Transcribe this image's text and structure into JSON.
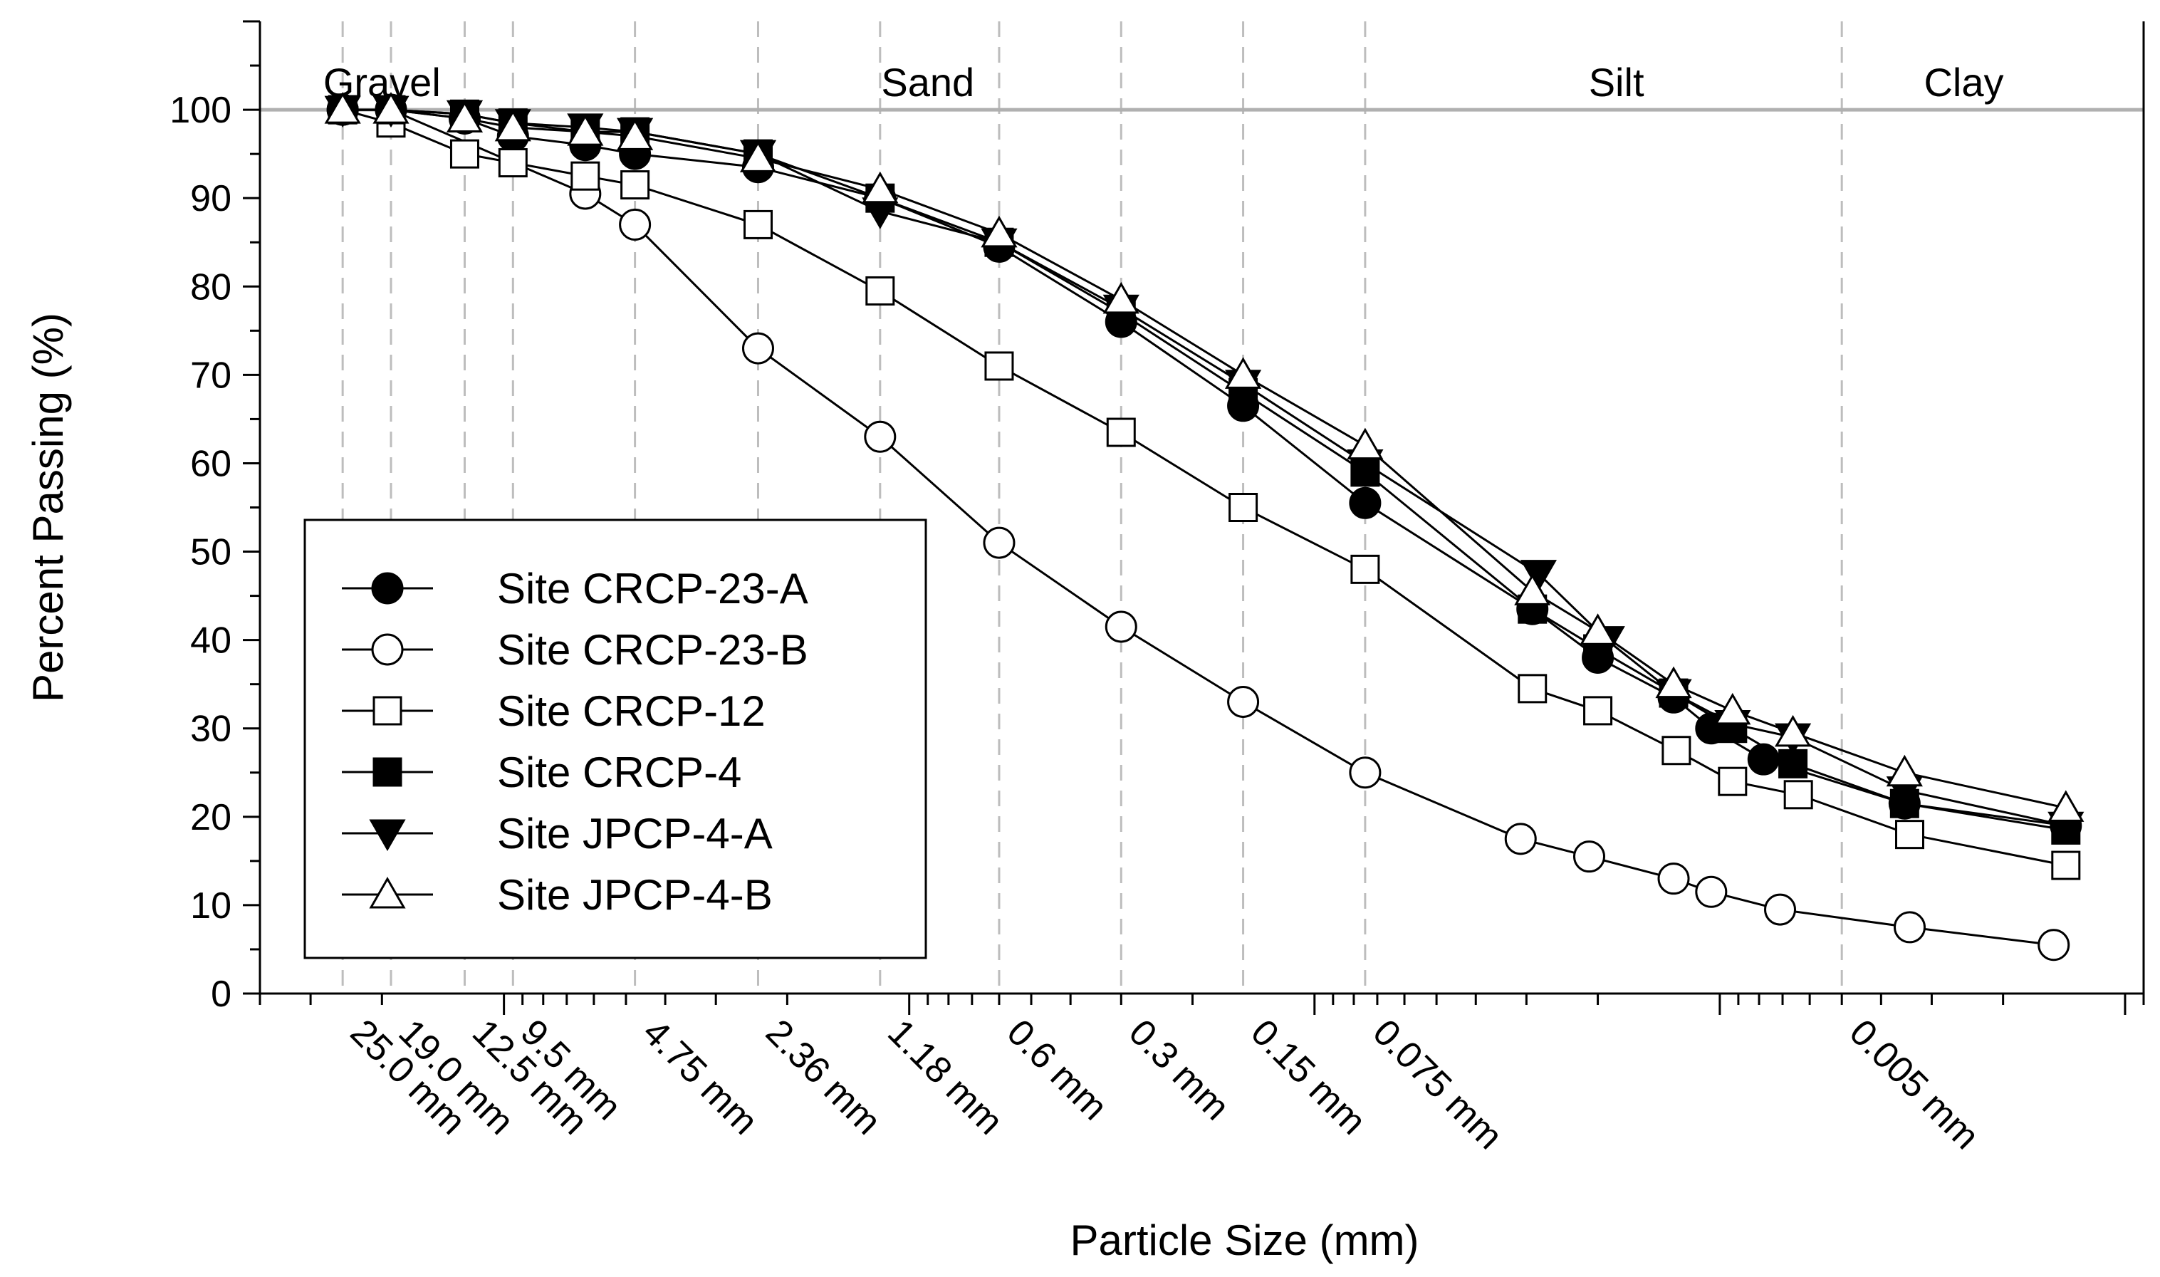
{
  "chart_data": {
    "type": "line",
    "title": "",
    "xlabel": "Particle Size (mm)",
    "ylabel": "Percent  Passing (%)",
    "x_scale": "log",
    "x_direction": "descending",
    "xlim": [
      40,
      0.0009
    ],
    "ylim": [
      0,
      110
    ],
    "yticks": [
      0,
      10,
      20,
      30,
      40,
      50,
      60,
      70,
      80,
      90,
      100
    ],
    "gridlines": "dashed vertical lines at sieve sizes",
    "reference_line_y": 100,
    "sieve_labels": [
      {
        "x": 25.0,
        "label": "25.0 mm"
      },
      {
        "x": 19.0,
        "label": "19.0 mm"
      },
      {
        "x": 12.5,
        "label": "12.5 mm"
      },
      {
        "x": 9.5,
        "label": "9.5 mm"
      },
      {
        "x": 4.75,
        "label": "4.75 mm"
      },
      {
        "x": 2.36,
        "label": "2.36 mm"
      },
      {
        "x": 1.18,
        "label": "1.18 mm"
      },
      {
        "x": 0.6,
        "label": "0.6 mm"
      },
      {
        "x": 0.3,
        "label": "0.3 mm"
      },
      {
        "x": 0.15,
        "label": "0.15 mm"
      },
      {
        "x": 0.075,
        "label": "0.075 mm"
      },
      {
        "x": 0.005,
        "label": "0.005 mm"
      }
    ],
    "regions": [
      {
        "name": "Gravel",
        "x": 20
      },
      {
        "name": "Sand",
        "x": 0.9
      },
      {
        "name": "Silt",
        "x": 0.018
      },
      {
        "name": "Clay",
        "x": 0.0025
      }
    ],
    "legend_position": "bottom-left",
    "series": [
      {
        "name": "Site CRCP-23-A",
        "marker": "circle",
        "filled": true,
        "x": [
          25.0,
          19.0,
          12.5,
          9.5,
          6.3,
          4.75,
          2.36,
          1.18,
          0.6,
          0.3,
          0.15,
          0.075,
          0.029,
          0.02,
          0.013,
          0.0105,
          0.0078,
          0.0035,
          0.0014
        ],
        "y": [
          100,
          100,
          99,
          97,
          96,
          95,
          93.5,
          90,
          84.5,
          76,
          66.5,
          55.5,
          43.5,
          38,
          33.5,
          30,
          26.5,
          21.5,
          19
        ]
      },
      {
        "name": "Site CRCP-23-B",
        "marker": "circle",
        "filled": false,
        "x": [
          25.0,
          19.0,
          6.3,
          4.75,
          2.36,
          1.18,
          0.6,
          0.3,
          0.15,
          0.075,
          0.031,
          0.021,
          0.013,
          0.0105,
          0.0071,
          0.0034,
          0.0015
        ],
        "y": [
          100,
          100,
          90.5,
          87,
          73,
          63,
          51,
          41.5,
          33,
          25,
          17.5,
          15.5,
          13,
          11.5,
          9.5,
          7.5,
          5.5
        ]
      },
      {
        "name": "Site CRCP-12",
        "marker": "square",
        "filled": false,
        "x": [
          25.0,
          19.0,
          12.5,
          9.5,
          6.3,
          4.75,
          2.36,
          1.18,
          0.6,
          0.3,
          0.15,
          0.075,
          0.029,
          0.02,
          0.0128,
          0.0093,
          0.0064,
          0.0034,
          0.0014
        ],
        "y": [
          100,
          98.5,
          95,
          94,
          92.5,
          91.5,
          87,
          79.5,
          71,
          63.5,
          55,
          48,
          34.5,
          32,
          27.5,
          24,
          22.5,
          18,
          14.5
        ]
      },
      {
        "name": "Site CRCP-4",
        "marker": "square",
        "filled": true,
        "x": [
          25.0,
          19.0,
          12.5,
          9.5,
          6.3,
          4.75,
          2.36,
          1.18,
          0.6,
          0.3,
          0.15,
          0.075,
          0.029,
          0.02,
          0.013,
          0.0093,
          0.0066,
          0.0035,
          0.0014
        ],
        "y": [
          100,
          100,
          99.5,
          98.5,
          97.5,
          97.5,
          95,
          90,
          85,
          77,
          68,
          59,
          43.5,
          39,
          34,
          30,
          26,
          21.5,
          18.5
        ]
      },
      {
        "name": "Site JPCP-4-A",
        "marker": "triangle-down",
        "filled": true,
        "x": [
          25.0,
          19.0,
          12.5,
          9.5,
          6.3,
          4.75,
          2.36,
          1.18,
          0.6,
          0.3,
          0.15,
          0.075,
          0.028,
          0.019,
          0.013,
          0.0093,
          0.0066,
          0.0035,
          0.0014
        ],
        "y": [
          100,
          100,
          99.5,
          98.5,
          98,
          97.5,
          95,
          88.5,
          85,
          77.5,
          69,
          60,
          47.5,
          40,
          34,
          30.5,
          29,
          23,
          19
        ]
      },
      {
        "name": "Site JPCP-4-B",
        "marker": "triangle-up",
        "filled": false,
        "x": [
          25.0,
          19.0,
          12.5,
          9.5,
          6.3,
          4.75,
          2.36,
          1.18,
          0.6,
          0.3,
          0.15,
          0.075,
          0.029,
          0.02,
          0.013,
          0.0093,
          0.0066,
          0.0035,
          0.0014
        ],
        "y": [
          100,
          100,
          99,
          98,
          97.5,
          97,
          94.5,
          91,
          86,
          78.5,
          70,
          62,
          45.5,
          41,
          35,
          32,
          29.5,
          25,
          21
        ]
      }
    ]
  }
}
